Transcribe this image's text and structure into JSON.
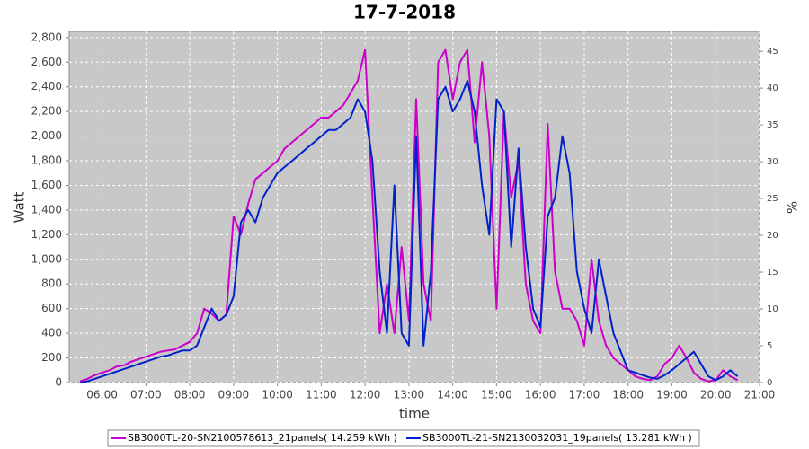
{
  "chart_data": {
    "type": "line",
    "title": "17-7-2018",
    "x_label": "time",
    "y_label": "Watt",
    "y2_label": "%",
    "x": [
      "05:30",
      "05:40",
      "05:50",
      "06:00",
      "06:10",
      "06:20",
      "06:30",
      "06:40",
      "06:50",
      "07:00",
      "07:10",
      "07:20",
      "07:30",
      "07:40",
      "07:50",
      "08:00",
      "08:10",
      "08:20",
      "08:30",
      "08:40",
      "08:50",
      "09:00",
      "09:10",
      "09:20",
      "09:30",
      "09:40",
      "09:50",
      "10:00",
      "10:10",
      "10:20",
      "10:30",
      "10:40",
      "10:50",
      "11:00",
      "11:10",
      "11:20",
      "11:30",
      "11:40",
      "11:50",
      "12:00",
      "12:10",
      "12:20",
      "12:30",
      "12:40",
      "12:50",
      "13:00",
      "13:10",
      "13:20",
      "13:30",
      "13:40",
      "13:50",
      "14:00",
      "14:10",
      "14:20",
      "14:30",
      "14:40",
      "14:50",
      "15:00",
      "15:10",
      "15:20",
      "15:30",
      "15:40",
      "15:50",
      "16:00",
      "16:10",
      "16:20",
      "16:30",
      "16:40",
      "16:50",
      "17:00",
      "17:10",
      "17:20",
      "17:30",
      "17:40",
      "17:50",
      "18:00",
      "18:10",
      "18:20",
      "18:30",
      "18:40",
      "18:50",
      "19:00",
      "19:10",
      "19:20",
      "19:30",
      "19:40",
      "19:50",
      "20:00",
      "20:10",
      "20:20",
      "20:30"
    ],
    "series": [
      {
        "name": "SB3000TL-20-SN2100578613_21panels( 14.259 kWh )",
        "color": "#cc00cc",
        "values": [
          10,
          30,
          60,
          80,
          100,
          130,
          140,
          170,
          190,
          210,
          230,
          250,
          260,
          270,
          300,
          330,
          400,
          600,
          560,
          500,
          550,
          1350,
          1200,
          1450,
          1650,
          1700,
          1750,
          1800,
          1900,
          1950,
          2000,
          2050,
          2100,
          2150,
          2150,
          2200,
          2250,
          2350,
          2450,
          2700,
          1500,
          400,
          800,
          400,
          1100,
          500,
          2300,
          800,
          500,
          2600,
          2700,
          2300,
          2600,
          2700,
          1950,
          2600,
          2000,
          600,
          2200,
          1500,
          1800,
          800,
          500,
          400,
          2100,
          900,
          600,
          600,
          500,
          300,
          1000,
          500,
          300,
          200,
          150,
          100,
          50,
          30,
          20,
          50,
          150,
          200,
          300,
          200,
          80,
          30,
          10,
          20,
          100,
          50,
          20
        ]
      },
      {
        "name": "SB3000TL-21-SN2130032031_19panels( 13.281 kWh )",
        "color": "#0022cc",
        "values": [
          0,
          10,
          30,
          50,
          70,
          90,
          110,
          130,
          150,
          170,
          190,
          210,
          220,
          240,
          260,
          260,
          300,
          450,
          600,
          500,
          550,
          700,
          1300,
          1400,
          1300,
          1500,
          1600,
          1700,
          1750,
          1800,
          1850,
          1900,
          1950,
          2000,
          2050,
          2050,
          2100,
          2150,
          2300,
          2200,
          1800,
          900,
          400,
          1600,
          400,
          300,
          2000,
          300,
          900,
          2300,
          2400,
          2200,
          2300,
          2450,
          2200,
          1600,
          1200,
          2300,
          2200,
          1100,
          1900,
          1100,
          600,
          450,
          1350,
          1500,
          2000,
          1700,
          900,
          600,
          400,
          1000,
          700,
          400,
          250,
          100,
          80,
          60,
          40,
          30,
          60,
          100,
          150,
          200,
          250,
          150,
          50,
          20,
          50,
          100,
          50
        ]
      }
    ],
    "xlim": [
      "05:15",
      "21:00"
    ],
    "xticks": [
      "06:00",
      "07:00",
      "08:00",
      "09:00",
      "10:00",
      "11:00",
      "12:00",
      "13:00",
      "14:00",
      "15:00",
      "16:00",
      "17:00",
      "18:00",
      "19:00",
      "20:00",
      "21:00"
    ],
    "ylim": [
      0,
      2850
    ],
    "yticks": [
      0,
      200,
      400,
      600,
      800,
      {
        "value": 1000,
        "label": "1,000"
      },
      {
        "value": 1200,
        "label": "1,200"
      },
      {
        "value": 1400,
        "label": "1,400"
      },
      {
        "value": 1600,
        "label": "1,600"
      },
      {
        "value": 1800,
        "label": "1,800"
      },
      {
        "value": 2000,
        "label": "2,000"
      },
      {
        "value": 2200,
        "label": "2,200"
      },
      {
        "value": 2400,
        "label": "2,400"
      },
      {
        "value": 2600,
        "label": "2,600"
      },
      {
        "value": 2800,
        "label": "2,800"
      }
    ],
    "y2lim": [
      0,
      47.7
    ],
    "y2ticks": [
      0,
      5,
      10,
      15,
      20,
      25,
      30,
      35,
      40,
      45
    ],
    "grid": true,
    "legend": "bottom"
  }
}
